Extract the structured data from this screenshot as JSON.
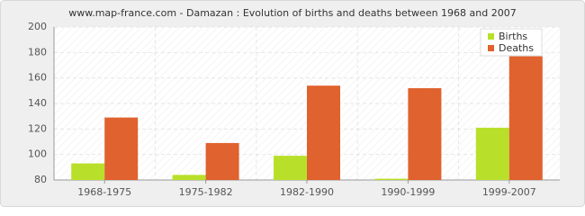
{
  "chart_data": {
    "type": "bar",
    "title": "www.map-france.com - Damazan : Evolution of births and deaths between 1968 and 2007",
    "categories": [
      "1968-1975",
      "1975-1982",
      "1982-1990",
      "1990-1999",
      "1999-2007"
    ],
    "series": [
      {
        "name": "Births",
        "color": "#b8e02a",
        "values": [
          93,
          84,
          99,
          81,
          121
        ]
      },
      {
        "name": "Deaths",
        "color": "#e0622e",
        "values": [
          129,
          109,
          154,
          152,
          177
        ]
      }
    ],
    "ylim": [
      80,
      200
    ],
    "yticks": [
      80,
      100,
      120,
      140,
      160,
      180,
      200
    ],
    "grid": true,
    "legend": "top-right"
  }
}
